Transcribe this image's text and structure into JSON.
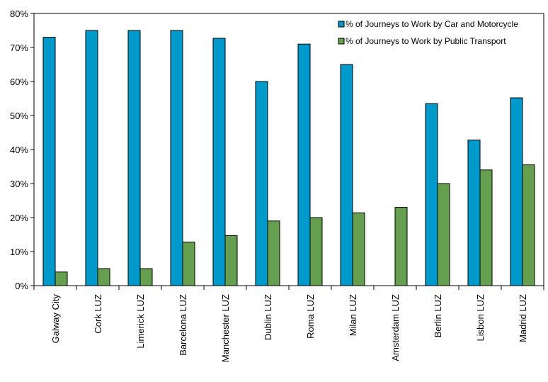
{
  "chart_data": {
    "type": "bar",
    "categories": [
      "Galway City",
      "Cork LUZ",
      "Limerick LUZ",
      "Barcelona LUZ",
      "Manchester LUZ",
      "Dublin LUZ",
      "Roma LUZ",
      "Milan LUZ",
      "Amsterdam LUZ",
      "Berlin LUZ",
      "Lisbon LUZ",
      "Madrid LUZ"
    ],
    "series": [
      {
        "name": "% of Journeys to Work by Car and Motorcycle",
        "color": "#0099CC",
        "values": [
          73,
          75,
          75,
          75,
          72.7,
          60,
          71,
          65,
          null,
          53.5,
          42.8,
          55.2
        ]
      },
      {
        "name": "% of Journeys to Work by Public Transport",
        "color": "#669F4F",
        "values": [
          4,
          5,
          5,
          12.8,
          14.7,
          19,
          20,
          21.4,
          23,
          30,
          34,
          35.5
        ]
      }
    ],
    "ylim": [
      0,
      80
    ],
    "yticks": [
      "0%",
      "10%",
      "20%",
      "30%",
      "40%",
      "50%",
      "60%",
      "70%",
      "80%"
    ],
    "ytick_values": [
      0,
      10,
      20,
      30,
      40,
      50,
      60,
      70,
      80
    ],
    "legend_position": "top-right",
    "grid": false,
    "title": "",
    "xlabel": "",
    "ylabel": ""
  }
}
